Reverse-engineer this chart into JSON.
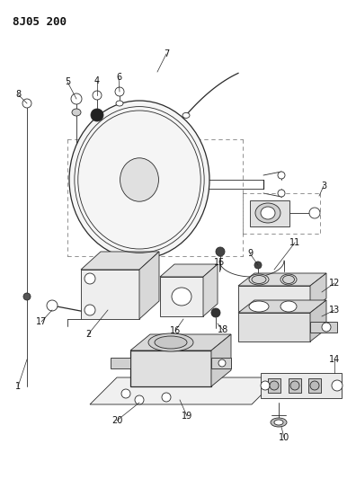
{
  "title": "8J05 200",
  "bg_color": "#ffffff",
  "line_color": "#2a2a2a",
  "label_color": "#111111",
  "title_fontsize": 9,
  "label_fontsize": 7,
  "fig_width": 3.96,
  "fig_height": 5.33,
  "dpi": 100
}
